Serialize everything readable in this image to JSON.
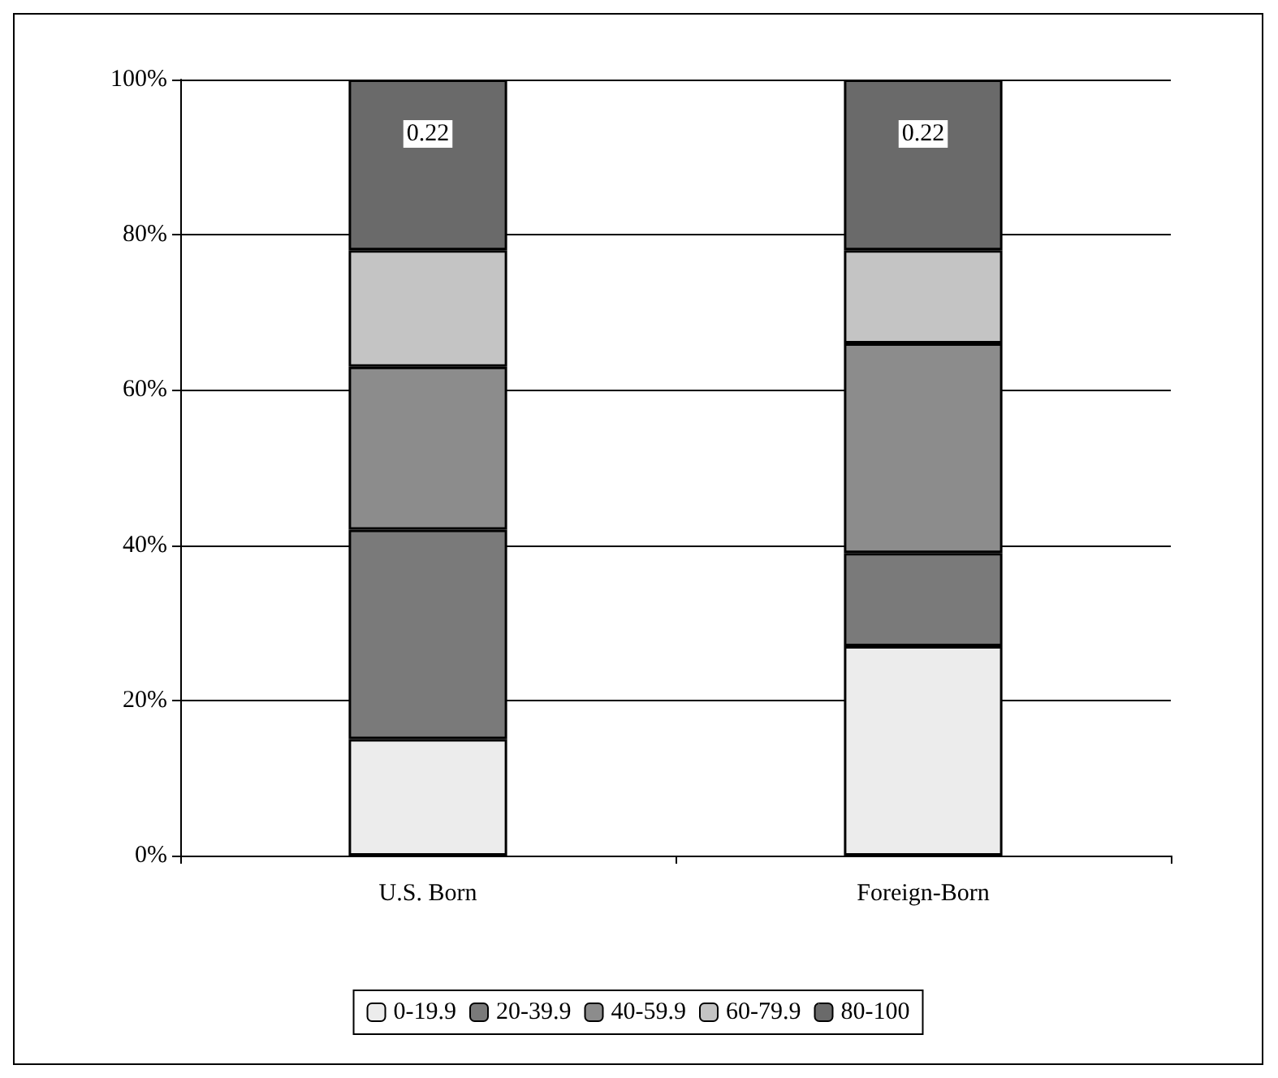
{
  "chart_data": {
    "type": "bar",
    "stacked": true,
    "categories": [
      "U.S. Born",
      "Foreign-Born"
    ],
    "series": [
      {
        "name": "0-19.9",
        "color": "#ececec",
        "values": [
          0.15,
          0.27
        ]
      },
      {
        "name": "20-39.9",
        "color": "#7a7a7a",
        "values": [
          0.27,
          0.12
        ]
      },
      {
        "name": "40-59.9",
        "color": "#8c8c8c",
        "values": [
          0.21,
          0.27
        ]
      },
      {
        "name": "60-79.9",
        "color": "#c4c4c4",
        "values": [
          0.15,
          0.12
        ]
      },
      {
        "name": "80-100",
        "color": "#6a6a6a",
        "values": [
          0.22,
          0.22
        ],
        "value_labels": [
          "0.22",
          "0.22"
        ]
      }
    ],
    "ylim": [
      0,
      1
    ],
    "yticks": [
      {
        "value": 0,
        "label": "0%"
      },
      {
        "value": 0.2,
        "label": "20%"
      },
      {
        "value": 0.4,
        "label": "40%"
      },
      {
        "value": 0.6,
        "label": "60%"
      },
      {
        "value": 0.8,
        "label": "80%"
      },
      {
        "value": 1,
        "label": "100%"
      }
    ],
    "grid": "y",
    "legend": "bottom"
  }
}
